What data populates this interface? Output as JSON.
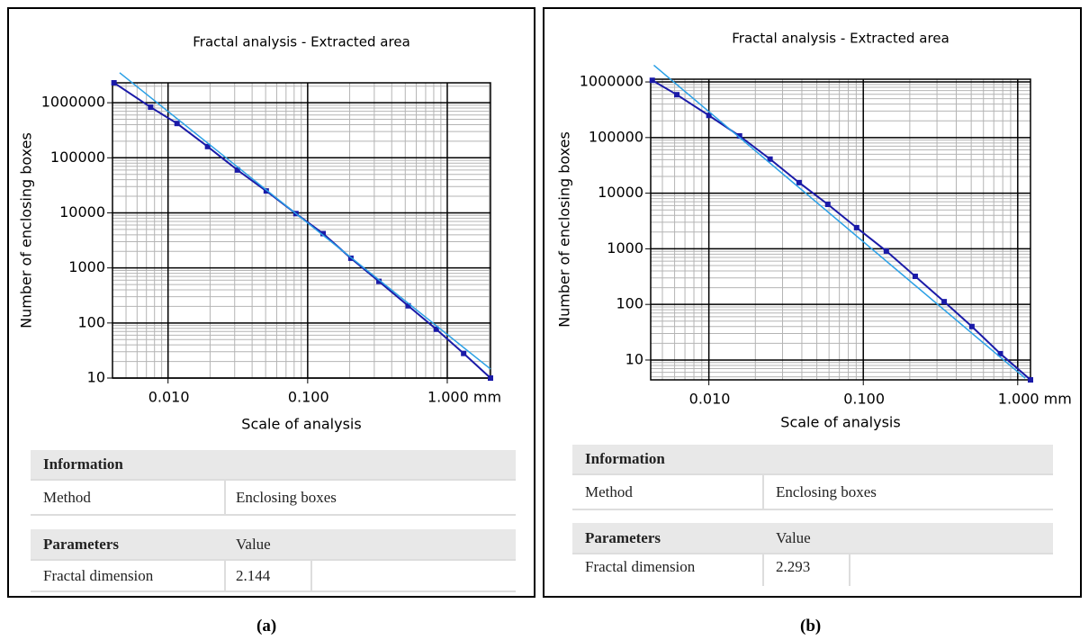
{
  "chart_data": [
    {
      "type": "line",
      "title": "Fractal analysis - Extracted area",
      "x_label": "Scale of analysis",
      "y_label": "Number of enclosing boxes",
      "x_scale": "log",
      "y_scale": "log",
      "grid": true,
      "minor_grid": true,
      "xlim": [
        0.004,
        2.04
      ],
      "ylim": [
        10,
        2300000
      ],
      "xticks": [
        {
          "value": 0.01,
          "label": "0.010"
        },
        {
          "value": 0.1,
          "label": "0.100"
        },
        {
          "value": 1,
          "label": "1.000 mm"
        }
      ],
      "yticks": [
        10,
        100,
        1000,
        10000,
        100000,
        1000000
      ],
      "series": [
        {
          "color": "#1a1aa8",
          "marker": "square",
          "x": [
            0.0041,
            0.0075,
            0.0116,
            0.0192,
            0.0314,
            0.0505,
            0.0824,
            0.129,
            0.204,
            0.324,
            0.525,
            0.834,
            1.31,
            2.04
          ],
          "values": [
            2300000,
            830000,
            420000,
            160000,
            60000,
            25000,
            9700,
            4200,
            1500,
            570,
            205,
            77,
            28,
            10
          ]
        },
        {
          "color": "#2aa0e6",
          "x": [
            0.0045,
            2.04
          ],
          "values": [
            3500000,
            14.6
          ]
        }
      ]
    },
    {
      "type": "line",
      "title": "Fractal analysis - Extracted area",
      "x_label": "Scale of analysis",
      "y_label": "Number of enclosing boxes",
      "x_scale": "log",
      "y_scale": "log",
      "grid": true,
      "minor_grid": true,
      "xlim": [
        0.0042,
        1.21
      ],
      "ylim": [
        4.4,
        1120000
      ],
      "xticks": [
        {
          "value": 0.01,
          "label": "0.010"
        },
        {
          "value": 0.1,
          "label": "0.100"
        },
        {
          "value": 1,
          "label": "1.000 mm"
        }
      ],
      "yticks": [
        10,
        100,
        1000,
        10000,
        100000,
        1000000
      ],
      "series": [
        {
          "color": "#1a1aa8",
          "marker": "square",
          "x": [
            0.0043,
            0.0062,
            0.01,
            0.0158,
            0.0249,
            0.0384,
            0.0589,
            0.0905,
            0.141,
            0.217,
            0.334,
            0.505,
            0.772,
            1.21
          ],
          "values": [
            1070000,
            590000,
            250000,
            107000,
            41000,
            15500,
            6300,
            2400,
            910,
            320,
            112,
            40,
            13,
            4.4
          ]
        },
        {
          "color": "#2aa0e6",
          "x": [
            0.0044,
            1.12
          ],
          "values": [
            2000000,
            4.7
          ]
        }
      ]
    }
  ],
  "tables": [
    {
      "info_header": "Information",
      "method": [
        "Method",
        "Enclosing boxes"
      ],
      "param_header": [
        "Parameters",
        "Value"
      ],
      "param_row": [
        "Fractal dimension",
        2.144
      ]
    },
    {
      "info_header": "Information",
      "method": [
        "Method",
        "Enclosing boxes"
      ],
      "param_header": [
        "Parameters",
        "Value"
      ],
      "param_row": [
        "Fractal dimension",
        2.293
      ]
    }
  ],
  "captions": [
    "(a)",
    "(b)"
  ]
}
